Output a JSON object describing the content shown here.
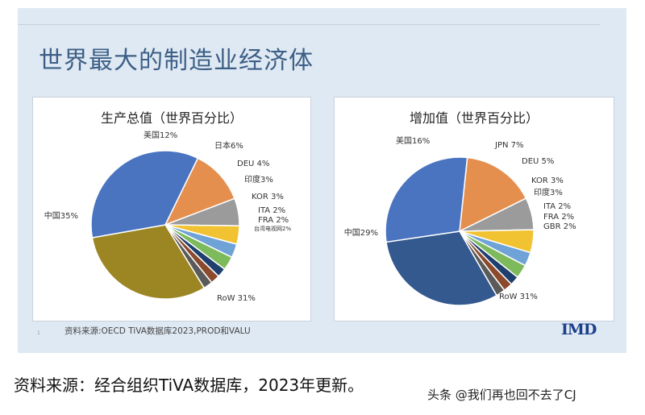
{
  "title": "世界最大的制造业经济体",
  "source_inner": "资料来源:OECD TiVA数据库2023,PROD和VALU",
  "logo": "IMD",
  "slide_number": "1",
  "caption": "资料来源：经合组织TiVA数据库，2023年更新。",
  "watermark": "头条 @我们再也回不去了CJ",
  "chart_data": [
    {
      "type": "pie",
      "title": "生产总值（世界百分比）",
      "slices": [
        {
          "label": "美国12%",
          "value": 12,
          "color": "#e58f4f"
        },
        {
          "label": "日本6%",
          "value": 6,
          "color": "#9b9b9b"
        },
        {
          "label": "DEU 4%",
          "value": 4,
          "color": "#f1c232"
        },
        {
          "label": "印度3%",
          "value": 3,
          "color": "#6fa2d6"
        },
        {
          "label": "KOR 3%",
          "value": 3,
          "color": "#7dba5c"
        },
        {
          "label": "ITA 2%",
          "value": 2,
          "color": "#1f3f6e"
        },
        {
          "label": "FRA 2%",
          "value": 2,
          "color": "#8c4a2c"
        },
        {
          "label": "台湾电视网2%",
          "value": 2,
          "color": "#5a5a5a"
        },
        {
          "label": "RoW 31%",
          "value": 31,
          "color": "#9c8624"
        },
        {
          "label": "中国35%",
          "value": 35,
          "color": "#4a74c0"
        }
      ]
    },
    {
      "type": "pie",
      "title": "增加值（世界百分比）",
      "slices": [
        {
          "label": "美国16%",
          "value": 16,
          "color": "#e58f4f"
        },
        {
          "label": "JPN 7%",
          "value": 7,
          "color": "#9b9b9b"
        },
        {
          "label": "DEU 5%",
          "value": 5,
          "color": "#f1c232"
        },
        {
          "label": "KOR 3%",
          "value": 3,
          "color": "#6fa2d6"
        },
        {
          "label": "印度3%",
          "value": 3,
          "color": "#7dba5c"
        },
        {
          "label": "ITA 2%",
          "value": 2,
          "color": "#1f3f6e"
        },
        {
          "label": "FRA 2%",
          "value": 2,
          "color": "#8c4a2c"
        },
        {
          "label": "GBR 2%",
          "value": 2,
          "color": "#5a5a5a"
        },
        {
          "label": "RoW 31%",
          "value": 31,
          "color": "#34598f"
        },
        {
          "label": "中国29%",
          "value": 29,
          "color": "#4a74c0"
        }
      ]
    }
  ]
}
